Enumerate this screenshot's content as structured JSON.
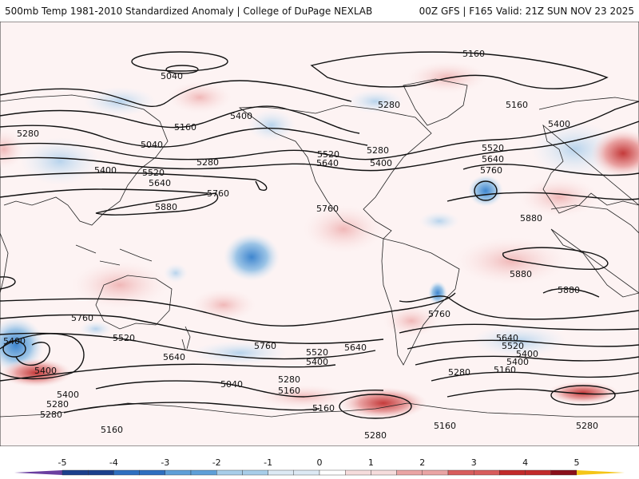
{
  "header": {
    "left_title": "500mb Temp 1981-2010 Standardized Anomaly | College of DuPage NEXLAB",
    "right_title": "00Z GFS | F165 Valid: 21Z SUN NOV 23 2025"
  },
  "map": {
    "projection": "global equirectangular",
    "contour_field": "500mb geopotential height (dam)",
    "contour_labels": [
      "5160",
      "5040",
      "5400",
      "5280",
      "5160",
      "5280",
      "5400",
      "5040",
      "5160",
      "5400",
      "5520",
      "5640",
      "5760",
      "5880",
      "5280",
      "5520",
      "5640",
      "5400",
      "5280",
      "5760",
      "5520",
      "5640",
      "5760",
      "5880",
      "5880",
      "5880",
      "5760",
      "5640",
      "5520",
      "5400",
      "5280",
      "5160",
      "5040",
      "5160",
      "5280",
      "5400",
      "5520",
      "5640",
      "5760",
      "5160",
      "5280",
      "5400",
      "5400",
      "5280",
      "5640",
      "5520",
      "5400",
      "5160",
      "5280",
      "5160",
      "5280",
      "5760",
      "5400"
    ]
  },
  "colorbar": {
    "ticks": [
      "-5",
      "-4",
      "-3",
      "-2",
      "-1",
      "0",
      "1",
      "2",
      "3",
      "4",
      "5"
    ],
    "colors": [
      "#6a3fa0",
      "#1c3f8c",
      "#2f6fc0",
      "#5f9fd8",
      "#a8cde9",
      "#dde9f4",
      "#ffffff",
      "#f6dcdc",
      "#eaa4a4",
      "#d85c5c",
      "#c22a2a",
      "#8a0f1a",
      "#f5c518"
    ]
  }
}
